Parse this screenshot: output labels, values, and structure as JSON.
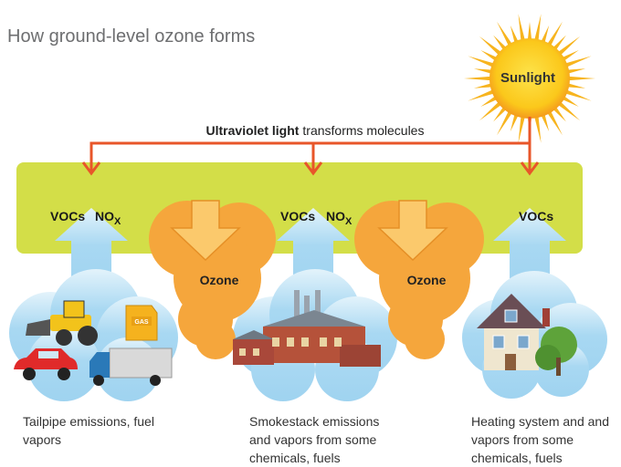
{
  "title": "How ground-level ozone forms",
  "sun": {
    "label": "Sunlight"
  },
  "uv": {
    "bold": "Ultraviolet light",
    "rest": "transforms molecules"
  },
  "sources": [
    {
      "vocs": "VOCs",
      "nox": {
        "main": "NO",
        "sub": "X"
      },
      "caption": "Tailpipe emissions, fuel vapors",
      "gas_can": "GAS"
    },
    {
      "vocs": "VOCs",
      "nox": {
        "main": "NO",
        "sub": "X"
      },
      "caption": "Smokestack emissions and vapors from some chemicals, fuels"
    },
    {
      "vocs": "VOCs",
      "caption": "Heating system and and vapors from some chemicals, fuels"
    }
  ],
  "ozone": [
    "Ozone",
    "Ozone"
  ]
}
